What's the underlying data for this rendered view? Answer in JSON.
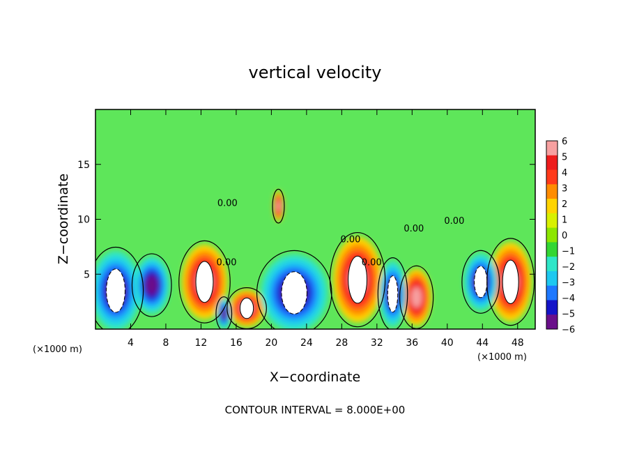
{
  "chart_data": {
    "type": "heatmap",
    "title": "vertical velocity",
    "xlabel": "X−coordinate",
    "ylabel": "Z−coordinate",
    "x_unit_left": "(×1000 m)",
    "x_unit_right": "(×1000 m)",
    "xlim": [
      0,
      50
    ],
    "ylim": [
      0,
      20
    ],
    "x_ticks": [
      4,
      8,
      12,
      16,
      20,
      24,
      28,
      32,
      36,
      40,
      44,
      48
    ],
    "x_tick_labels": [
      "4",
      "8",
      "12",
      "16",
      "20",
      "24",
      "28",
      "32",
      "36",
      "40",
      "44",
      "48"
    ],
    "y_ticks": [
      5,
      10,
      15
    ],
    "y_tick_labels": [
      "5",
      "10",
      "15"
    ],
    "colorbar": {
      "levels": [
        6,
        5,
        4,
        3,
        2,
        1,
        0,
        -1,
        -2,
        -3,
        -4,
        -5,
        -6
      ],
      "labels": [
        "6",
        "5",
        "4",
        "3",
        "2",
        "1",
        "0",
        "−1",
        "−2",
        "−3",
        "−4",
        "−5",
        "−6"
      ],
      "colors": [
        "#f7a0a0",
        "#ee1c1c",
        "#ff3a1a",
        "#ff8c00",
        "#ffd400",
        "#d8f000",
        "#8ce600",
        "#33d633",
        "#2ee6c8",
        "#1ec8f0",
        "#1e78ff",
        "#1414c8",
        "#6a0f8a"
      ]
    },
    "background_color": "#5ee65a",
    "contour_labels": [
      {
        "text": "0.00",
        "x": 15.0,
        "z": 11.2
      },
      {
        "text": "0.00",
        "x": 29.0,
        "z": 7.9
      },
      {
        "text": "0.00",
        "x": 36.2,
        "z": 8.9
      },
      {
        "text": "0.00",
        "x": 40.8,
        "z": 9.6
      },
      {
        "text": "0.00",
        "x": 14.9,
        "z": 5.8
      },
      {
        "text": "0.00",
        "x": 31.4,
        "z": 5.8
      }
    ],
    "features": [
      {
        "kind": "updraft",
        "x": 12.4,
        "z": 4.3,
        "rx": 2.6,
        "rz": 3.4,
        "core": true
      },
      {
        "kind": "updraft",
        "x": 29.8,
        "z": 4.5,
        "rx": 2.8,
        "rz": 3.9,
        "core": true
      },
      {
        "kind": "updraft",
        "x": 47.2,
        "z": 4.3,
        "rx": 2.4,
        "rz": 3.6,
        "core": true
      },
      {
        "kind": "updraft",
        "x": 17.2,
        "z": 1.9,
        "rx": 2.0,
        "rz": 1.7,
        "core": true
      },
      {
        "kind": "updraft",
        "x": 36.5,
        "z": 2.9,
        "rx": 1.7,
        "rz": 2.6,
        "core": false
      },
      {
        "kind": "updraft",
        "x": 20.8,
        "z": 11.2,
        "rx": 0.6,
        "rz": 1.4,
        "core": false
      },
      {
        "kind": "downdraft",
        "x": 2.3,
        "z": 3.5,
        "rx": 2.8,
        "rz": 3.6,
        "core": true
      },
      {
        "kind": "downdraft",
        "x": 6.4,
        "z": 4.0,
        "rx": 2.0,
        "rz": 2.6,
        "core": false
      },
      {
        "kind": "downdraft",
        "x": 22.6,
        "z": 3.3,
        "rx": 3.8,
        "rz": 3.5,
        "core": true
      },
      {
        "kind": "downdraft",
        "x": 33.8,
        "z": 3.2,
        "rx": 1.5,
        "rz": 3.0,
        "core": true
      },
      {
        "kind": "downdraft",
        "x": 43.8,
        "z": 4.3,
        "rx": 1.9,
        "rz": 2.6,
        "core": true
      },
      {
        "kind": "downdraft",
        "x": 14.6,
        "z": 1.4,
        "rx": 0.8,
        "rz": 1.4,
        "core": false
      }
    ]
  },
  "footer": {
    "contour_interval": "CONTOUR INTERVAL = 8.000E+00"
  }
}
